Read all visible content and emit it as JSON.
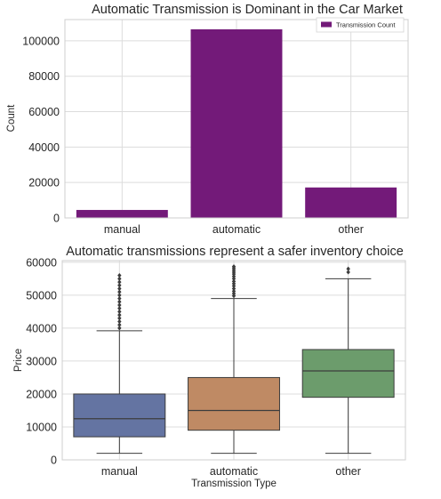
{
  "chart_data": [
    {
      "type": "bar",
      "title": "Automatic Transmission is Dominant in the Car Market",
      "xlabel": "",
      "ylabel": "Count",
      "categories": [
        "manual",
        "automatic",
        "other"
      ],
      "series": [
        {
          "name": "Transmission Count",
          "values": [
            4500,
            106500,
            17200
          ]
        }
      ],
      "ylim": [
        0,
        112000
      ],
      "yticks": [
        0,
        20000,
        40000,
        60000,
        80000,
        100000
      ],
      "yticklabels": [
        "0",
        "20000",
        "40000",
        "60000",
        "80000",
        "100000"
      ],
      "legend": "top-right",
      "grid": true,
      "colors": {
        "bar": "#731a79"
      }
    },
    {
      "type": "box",
      "title": "Automatic transmissions represent a safer inventory choice",
      "xlabel": "Transmission Type",
      "ylabel": "Price",
      "categories": [
        "manual",
        "automatic",
        "other"
      ],
      "boxes": [
        {
          "whisker_low": 2000,
          "q1": 7000,
          "median": 12500,
          "q3": 20000,
          "whisker_high": 39200,
          "outliers": [
            40000,
            41000,
            42000,
            43000,
            44000,
            45000,
            46000,
            47000,
            48000,
            49000,
            50000,
            51000,
            52000,
            53000,
            54000,
            55000,
            56000
          ]
        },
        {
          "whisker_low": 2000,
          "q1": 9000,
          "median": 15000,
          "q3": 25000,
          "whisker_high": 49000,
          "outliers": [
            49800,
            50500,
            51200,
            52000,
            52800,
            53500,
            54200,
            55000,
            55700,
            56400,
            57000,
            57600,
            58200,
            58700
          ]
        },
        {
          "whisker_low": 2000,
          "q1": 19000,
          "median": 27000,
          "q3": 33500,
          "whisker_high": 55000,
          "outliers": [
            57000,
            58000
          ]
        }
      ],
      "ylim": [
        0,
        60500
      ],
      "yticks": [
        0,
        10000,
        20000,
        30000,
        40000,
        50000,
        60000
      ],
      "yticklabels": [
        "0",
        "10000",
        "20000",
        "30000",
        "40000",
        "50000",
        "60000"
      ],
      "grid": true,
      "colors": {
        "box": [
          "#6474a2",
          "#bf8a64",
          "#6c9c6c"
        ],
        "line": "#3c3c3c"
      }
    }
  ]
}
